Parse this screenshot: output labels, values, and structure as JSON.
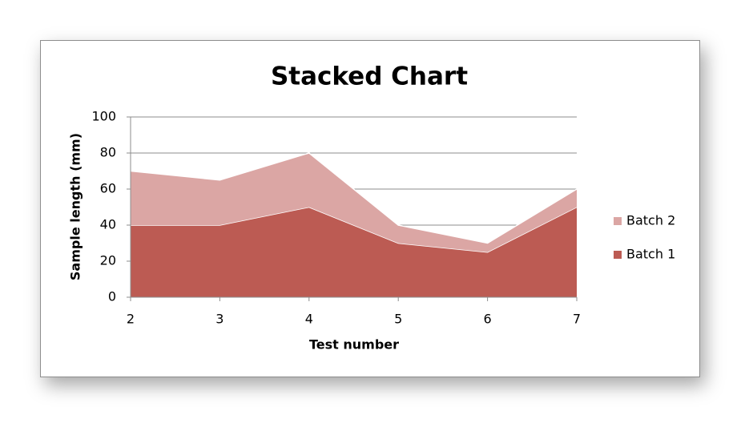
{
  "chart_data": {
    "type": "area",
    "stacked": true,
    "title": "Stacked Chart",
    "x_label": "Test number",
    "y_label": "Sample length (mm)",
    "x": [
      2,
      3,
      4,
      5,
      6,
      7
    ],
    "series": [
      {
        "name": "Batch 1",
        "color": "#bc5b53",
        "values": [
          40,
          40,
          50,
          30,
          25,
          50
        ]
      },
      {
        "name": "Batch 2",
        "color": "#dba6a4",
        "values": [
          30,
          25,
          30,
          10,
          5,
          10
        ]
      }
    ],
    "xlim": [
      2,
      7
    ],
    "xticks": [
      2,
      3,
      4,
      5,
      6,
      7
    ],
    "ylim": [
      0,
      100
    ],
    "yticks": [
      0,
      20,
      40,
      60,
      80,
      100
    ],
    "grid": true,
    "legend": "right"
  }
}
